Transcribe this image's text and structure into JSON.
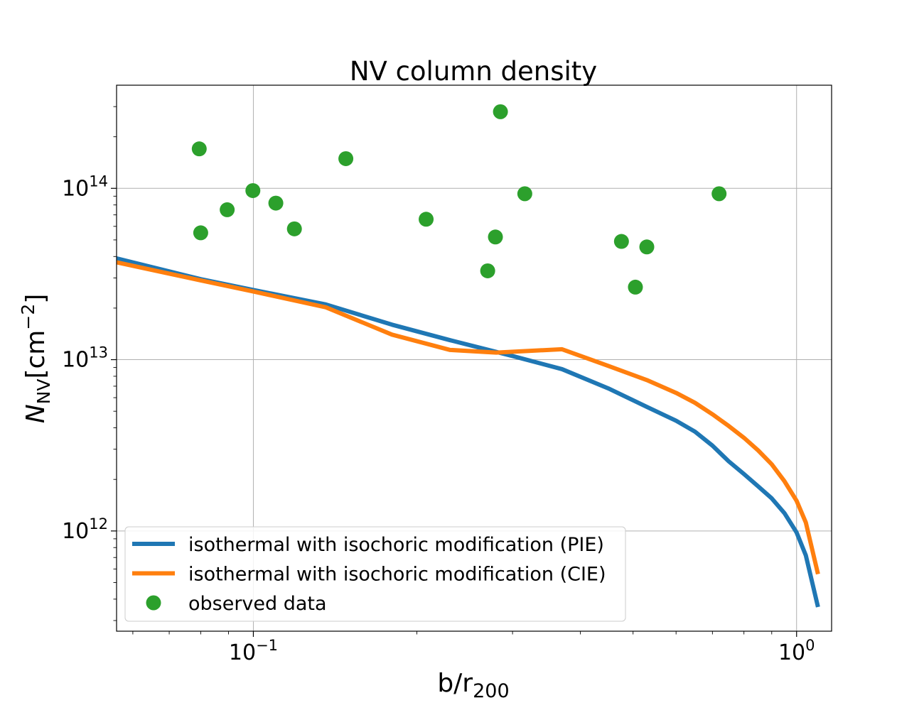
{
  "chart_data": {
    "type": "line",
    "title": "NV column density",
    "xlabel": {
      "main": "b/r",
      "sub": "200"
    },
    "ylabel": {
      "main": "N",
      "sub": "NV",
      "unit_open": "[cm",
      "unit_sup": "−2",
      "unit_close": "]"
    },
    "xscale": "log",
    "yscale": "log",
    "xlim": [
      0.056,
      1.16
    ],
    "ylim": [
      260000000000.0,
      400000000000000.0
    ],
    "grid": true,
    "legend_position": "lower-left",
    "x_ticks": [
      {
        "value": 0.1,
        "base": "10",
        "exp": "−1"
      },
      {
        "value": 1.0,
        "base": "10",
        "exp": "0"
      }
    ],
    "y_ticks": [
      {
        "value": 1000000000000.0,
        "base": "10",
        "exp": "12"
      },
      {
        "value": 10000000000000.0,
        "base": "10",
        "exp": "13"
      },
      {
        "value": 100000000000000.0,
        "base": "10",
        "exp": "14"
      }
    ],
    "series": [
      {
        "name": "isothermal with isochoric modification (PIE)",
        "kind": "line",
        "color": "#1f77b4",
        "points": [
          [
            0.056,
            39000000000000.0
          ],
          [
            0.08,
            29500000000000.0
          ],
          [
            0.1,
            25500000000000.0
          ],
          [
            0.136,
            21000000000000.0
          ],
          [
            0.18,
            16000000000000.0
          ],
          [
            0.23,
            13000000000000.0
          ],
          [
            0.3,
            10500000000000.0
          ],
          [
            0.37,
            8800000000000.0
          ],
          [
            0.45,
            6800000000000.0
          ],
          [
            0.53,
            5300000000000.0
          ],
          [
            0.6,
            4400000000000.0
          ],
          [
            0.65,
            3800000000000.0
          ],
          [
            0.7,
            3150000000000.0
          ],
          [
            0.75,
            2550000000000.0
          ],
          [
            0.8,
            2150000000000.0
          ],
          [
            0.85,
            1820000000000.0
          ],
          [
            0.9,
            1550000000000.0
          ],
          [
            0.95,
            1270000000000.0
          ],
          [
            1.0,
            980000000000.0
          ],
          [
            1.04,
            720000000000.0
          ],
          [
            1.095,
            360000000000.0
          ]
        ]
      },
      {
        "name": "isothermal with isochoric modification (CIE)",
        "kind": "line",
        "color": "#ff7f0e",
        "points": [
          [
            0.056,
            37000000000000.0
          ],
          [
            0.08,
            29000000000000.0
          ],
          [
            0.1,
            25000000000000.0
          ],
          [
            0.136,
            20200000000000.0
          ],
          [
            0.18,
            14000000000000.0
          ],
          [
            0.23,
            11400000000000.0
          ],
          [
            0.28,
            11000000000000.0
          ],
          [
            0.37,
            11500000000000.0
          ],
          [
            0.45,
            9200000000000.0
          ],
          [
            0.53,
            7600000000000.0
          ],
          [
            0.6,
            6400000000000.0
          ],
          [
            0.65,
            5600000000000.0
          ],
          [
            0.7,
            4800000000000.0
          ],
          [
            0.75,
            4100000000000.0
          ],
          [
            0.8,
            3500000000000.0
          ],
          [
            0.85,
            2950000000000.0
          ],
          [
            0.9,
            2450000000000.0
          ],
          [
            0.95,
            1950000000000.0
          ],
          [
            1.0,
            1500000000000.0
          ],
          [
            1.04,
            1120000000000.0
          ],
          [
            1.095,
            560000000000.0
          ]
        ]
      },
      {
        "name": "observed data",
        "kind": "scatter",
        "color": "#2ca02c",
        "points": [
          [
            0.0795,
            170000000000000.0
          ],
          [
            0.08,
            55000000000000.0
          ],
          [
            0.0895,
            75000000000000.0
          ],
          [
            0.0998,
            97000000000000.0
          ],
          [
            0.11,
            82000000000000.0
          ],
          [
            0.119,
            58000000000000.0
          ],
          [
            0.148,
            149000000000000.0
          ],
          [
            0.208,
            66000000000000.0
          ],
          [
            0.27,
            33000000000000.0
          ],
          [
            0.279,
            52000000000000.0
          ],
          [
            0.285,
            280000000000000.0
          ],
          [
            0.316,
            93000000000000.0
          ],
          [
            0.476,
            49000000000000.0
          ],
          [
            0.505,
            26500000000000.0
          ],
          [
            0.53,
            45500000000000.0
          ],
          [
            0.72,
            93000000000000.0
          ]
        ]
      }
    ]
  }
}
